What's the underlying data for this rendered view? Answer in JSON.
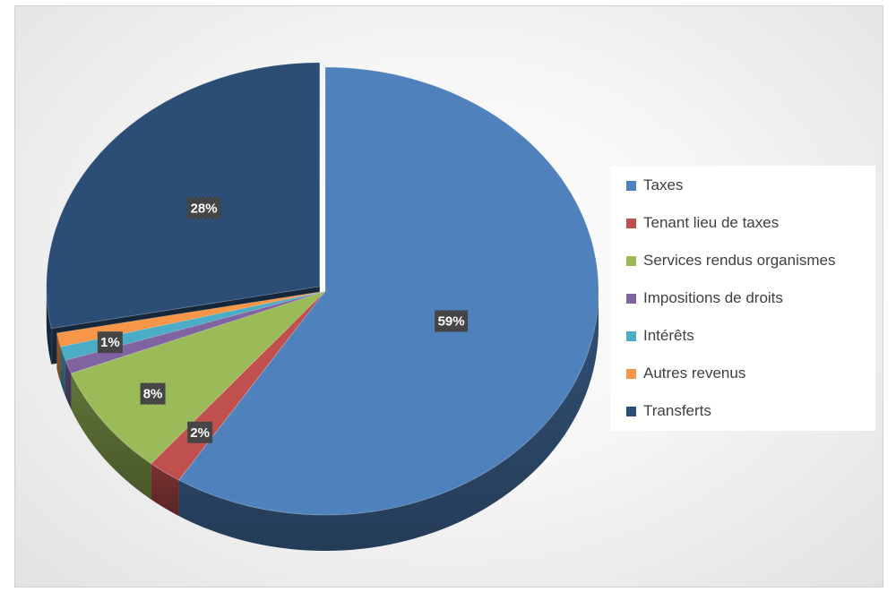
{
  "chart_data": {
    "type": "pie",
    "title": "",
    "categories": [
      "Taxes",
      "Tenant lieu de taxes",
      "Services rendus organismes",
      "Impositions de droits",
      "Intérêts",
      "Autres revenus",
      "Transferts"
    ],
    "values": [
      59,
      2,
      8,
      1,
      1,
      1,
      28
    ],
    "colors": [
      "#4f81bd",
      "#c0504d",
      "#9bbb59",
      "#8064a2",
      "#4bacc6",
      "#f79646",
      "#2c4d75"
    ],
    "data_labels": [
      "59%",
      "2%",
      "8%",
      "",
      "1%",
      "",
      "28%"
    ],
    "legend_position": "right",
    "style": "3d-exploded"
  }
}
